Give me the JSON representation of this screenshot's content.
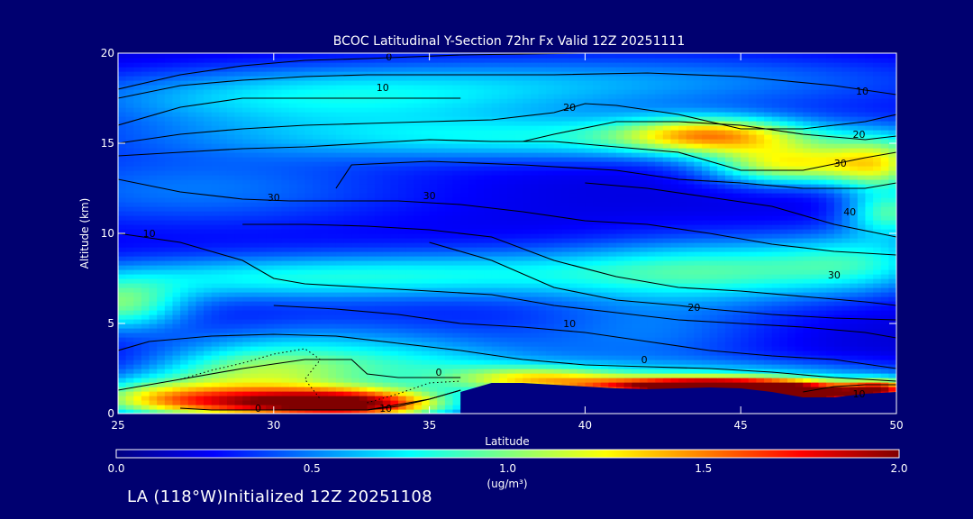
{
  "chart_data": {
    "type": "heatmap",
    "title": "BCOC Latitudinal Y-Section 72hr  Fx Valid 12Z 20251111",
    "xlabel": "Latitude",
    "ylabel": "Altitude (km)",
    "xlim": [
      25,
      50
    ],
    "ylim": [
      0,
      20
    ],
    "xticks": [
      {
        "value": 25,
        "label": "25"
      },
      {
        "value": 30,
        "label": "30"
      },
      {
        "value": 35,
        "label": "35"
      },
      {
        "value": 40,
        "label": "40"
      },
      {
        "value": 45,
        "label": "45"
      },
      {
        "value": 50,
        "label": "50"
      }
    ],
    "yticks": [
      {
        "value": 0,
        "label": "0"
      },
      {
        "value": 5,
        "label": "5"
      },
      {
        "value": 10,
        "label": "10"
      },
      {
        "value": 15,
        "label": "15"
      },
      {
        "value": 20,
        "label": "20"
      }
    ],
    "colorbar": {
      "range": [
        0.0,
        2.0
      ],
      "ticks": [
        {
          "value": 0.0,
          "label": "0.0"
        },
        {
          "value": 0.5,
          "label": "0.5"
        },
        {
          "value": 1.0,
          "label": "1.0"
        },
        {
          "value": 1.5,
          "label": "1.5"
        },
        {
          "value": 2.0,
          "label": "2.0"
        }
      ],
      "units": "(ug/m³)",
      "colormap": [
        "#000080",
        "#0000ff",
        "#0080ff",
        "#00ffff",
        "#80ff80",
        "#ffff00",
        "#ff8000",
        "#ff0000",
        "#800000"
      ]
    },
    "concentration_features": [
      {
        "lat": 46.5,
        "alt": 13.8,
        "value": 0.9,
        "sx": 1.8,
        "sy": 0.8
      },
      {
        "lat": 40.0,
        "alt": 15.3,
        "value": 0.55,
        "sx": 9.0,
        "sy": 0.9
      },
      {
        "lat": 44.0,
        "alt": 15.5,
        "value": 0.8,
        "sx": 2.0,
        "sy": 0.7
      },
      {
        "lat": 49.5,
        "alt": 13.8,
        "value": 0.8,
        "sx": 1.2,
        "sy": 1.0
      },
      {
        "lat": 49.8,
        "alt": 11.2,
        "value": 0.65,
        "sx": 1.0,
        "sy": 0.9
      },
      {
        "lat": 31.0,
        "alt": 17.5,
        "value": 0.5,
        "sx": 6.0,
        "sy": 1.2
      },
      {
        "lat": 42.0,
        "alt": 18.5,
        "value": 0.35,
        "sx": 8.0,
        "sy": 1.2
      },
      {
        "lat": 25.0,
        "alt": 6.0,
        "value": 0.7,
        "sx": 1.5,
        "sy": 1.0
      },
      {
        "lat": 29.0,
        "alt": 7.5,
        "value": 0.45,
        "sx": 5.0,
        "sy": 0.9
      },
      {
        "lat": 37.0,
        "alt": 7.8,
        "value": 0.4,
        "sx": 5.0,
        "sy": 1.0
      },
      {
        "lat": 44.5,
        "alt": 8.0,
        "value": 0.55,
        "sx": 3.5,
        "sy": 1.3
      },
      {
        "lat": 49.0,
        "alt": 8.5,
        "value": 0.4,
        "sx": 2.0,
        "sy": 1.2
      },
      {
        "lat": 27.5,
        "alt": 12.5,
        "value": 0.3,
        "sx": 5.0,
        "sy": 1.5
      },
      {
        "lat": 29.5,
        "alt": 2.2,
        "value": 0.75,
        "sx": 2.5,
        "sy": 1.1
      },
      {
        "lat": 30.0,
        "alt": 0.6,
        "value": 1.3,
        "sx": 3.0,
        "sy": 0.6
      },
      {
        "lat": 33.0,
        "alt": 0.5,
        "value": 1.0,
        "sx": 2.0,
        "sy": 0.6
      },
      {
        "lat": 26.0,
        "alt": 1.0,
        "value": 0.6,
        "sx": 2.0,
        "sy": 0.8
      },
      {
        "lat": 38.5,
        "alt": 1.9,
        "value": 0.7,
        "sx": 2.0,
        "sy": 0.5
      },
      {
        "lat": 35.0,
        "alt": 2.5,
        "value": 0.4,
        "sx": 3.0,
        "sy": 1.0
      },
      {
        "lat": 44.0,
        "alt": 1.5,
        "value": 2.0,
        "sx": 2.6,
        "sy": 0.35
      },
      {
        "lat": 47.0,
        "alt": 1.0,
        "value": 1.9,
        "sx": 1.3,
        "sy": 0.35
      },
      {
        "lat": 49.5,
        "alt": 1.3,
        "value": 1.3,
        "sx": 0.8,
        "sy": 0.4
      },
      {
        "lat": 45.0,
        "alt": 2.0,
        "value": 0.5,
        "sx": 5.0,
        "sy": 0.7
      },
      {
        "lat": 42.0,
        "alt": 4.5,
        "value": 0.3,
        "sx": 3.0,
        "sy": 1.5
      },
      {
        "lat": 32.0,
        "alt": 4.0,
        "value": 0.3,
        "sx": 4.0,
        "sy": 1.2
      }
    ],
    "terrain": [
      [
        36,
        1.2
      ],
      [
        37,
        1.7
      ],
      [
        38,
        1.7
      ],
      [
        39,
        1.6
      ],
      [
        40,
        1.5
      ],
      [
        41,
        1.4
      ],
      [
        42,
        1.35
      ],
      [
        43,
        1.4
      ],
      [
        44,
        1.45
      ],
      [
        45,
        1.4
      ],
      [
        46,
        1.2
      ],
      [
        47,
        0.9
      ],
      [
        48,
        0.9
      ],
      [
        49,
        1.1
      ],
      [
        50,
        1.2
      ]
    ],
    "contours": [
      {
        "level": "0",
        "points": [
          [
            25,
            18
          ],
          [
            27,
            18.8
          ],
          [
            29,
            19.3
          ],
          [
            31,
            19.6
          ],
          [
            33,
            19.7
          ],
          [
            36,
            19.9
          ],
          [
            40,
            20
          ]
        ],
        "label_at": [
          33.7,
          19.8
        ]
      },
      {
        "level": "10",
        "points": [
          [
            25,
            17.5
          ],
          [
            27,
            18.2
          ],
          [
            29,
            18.5
          ],
          [
            31,
            18.7
          ],
          [
            33,
            18.8
          ],
          [
            36,
            18.8
          ],
          [
            39,
            18.8
          ],
          [
            42,
            18.9
          ],
          [
            45,
            18.7
          ],
          [
            48,
            18.2
          ],
          [
            50,
            17.7
          ]
        ],
        "label_at": [
          33.5,
          18.1
        ]
      },
      {
        "level": "10",
        "points": [
          [
            25,
            16.0
          ],
          [
            27,
            17.0
          ],
          [
            29,
            17.5
          ],
          [
            31,
            17.5
          ],
          [
            33,
            17.5
          ],
          [
            34,
            17.5
          ],
          [
            36,
            17.5
          ]
        ],
        "label_at": [
          48.9,
          17.9
        ]
      },
      {
        "level": "20",
        "points": [
          [
            25,
            15.0
          ],
          [
            27,
            15.5
          ],
          [
            29,
            15.8
          ],
          [
            31,
            16.0
          ],
          [
            33,
            16.1
          ],
          [
            35,
            16.2
          ],
          [
            37,
            16.3
          ],
          [
            39,
            16.7
          ],
          [
            40,
            17.2
          ],
          [
            41,
            17.1
          ],
          [
            43,
            16.6
          ],
          [
            45,
            15.8
          ],
          [
            47,
            15.8
          ],
          [
            49,
            16.2
          ],
          [
            50,
            16.6
          ]
        ],
        "label_at": [
          39.5,
          17.0
        ]
      },
      {
        "level": "20",
        "points": [
          [
            38,
            15.1
          ],
          [
            39,
            15.5
          ],
          [
            41,
            16.2
          ],
          [
            43,
            16.2
          ],
          [
            45,
            16.0
          ],
          [
            47,
            15.5
          ],
          [
            49,
            15.2
          ],
          [
            50,
            15.4
          ]
        ],
        "label_at": [
          48.8,
          15.5
        ]
      },
      {
        "level": "30",
        "points": [
          [
            25,
            14.3
          ],
          [
            27,
            14.5
          ],
          [
            29,
            14.7
          ],
          [
            31,
            14.8
          ],
          [
            33,
            15.0
          ],
          [
            35,
            15.2
          ],
          [
            37,
            15.1
          ],
          [
            39,
            15.1
          ],
          [
            41,
            14.8
          ],
          [
            43,
            14.5
          ],
          [
            45,
            13.5
          ],
          [
            47,
            13.5
          ],
          [
            49,
            14.2
          ],
          [
            50,
            14.5
          ]
        ],
        "label_at": [
          48.2,
          13.9
        ]
      },
      {
        "level": "30",
        "points": [
          [
            32.0,
            12.5
          ],
          [
            32.5,
            13.8
          ],
          [
            35,
            14.0
          ],
          [
            38,
            13.8
          ],
          [
            41,
            13.5
          ],
          [
            43,
            13.0
          ],
          [
            45,
            12.8
          ],
          [
            47,
            12.5
          ],
          [
            49,
            12.5
          ],
          [
            50,
            12.8
          ]
        ],
        "label_at": [
          35.0,
          12.1
        ]
      },
      {
        "level": "30",
        "points": [
          [
            25,
            13.0
          ],
          [
            27,
            12.3
          ],
          [
            29,
            11.9
          ],
          [
            30.5,
            11.8
          ],
          [
            32,
            11.8
          ],
          [
            34,
            11.8
          ],
          [
            36,
            11.6
          ],
          [
            38,
            11.2
          ],
          [
            40,
            10.7
          ],
          [
            42,
            10.5
          ],
          [
            44,
            10.0
          ],
          [
            46,
            9.4
          ],
          [
            48,
            9.0
          ],
          [
            50,
            8.8
          ]
        ],
        "label_at": [
          30.0,
          12.0
        ]
      },
      {
        "level": "40",
        "points": [
          [
            40,
            12.8
          ],
          [
            42,
            12.5
          ],
          [
            44,
            12.0
          ],
          [
            46,
            11.5
          ],
          [
            48,
            10.5
          ],
          [
            50,
            9.8
          ]
        ],
        "label_at": [
          48.5,
          11.2
        ]
      },
      {
        "level": "10",
        "points": [
          [
            25,
            10.0
          ],
          [
            27,
            9.5
          ],
          [
            29,
            8.5
          ],
          [
            30,
            7.5
          ],
          [
            31,
            7.2
          ],
          [
            33,
            7.0
          ],
          [
            35,
            6.8
          ],
          [
            37,
            6.6
          ],
          [
            39,
            6.0
          ],
          [
            41,
            5.6
          ],
          [
            43,
            5.2
          ],
          [
            45,
            5.0
          ],
          [
            47,
            4.8
          ],
          [
            49,
            4.5
          ],
          [
            50,
            4.2
          ]
        ],
        "label_at": [
          26.0,
          10.0
        ]
      },
      {
        "level": "30",
        "points": [
          [
            29,
            10.5
          ],
          [
            31,
            10.5
          ],
          [
            33,
            10.4
          ],
          [
            35,
            10.2
          ],
          [
            37,
            9.8
          ],
          [
            39,
            8.5
          ],
          [
            41,
            7.6
          ],
          [
            43,
            7.0
          ],
          [
            45,
            6.8
          ],
          [
            47,
            6.5
          ],
          [
            49,
            6.2
          ],
          [
            50,
            6.0
          ]
        ],
        "label_at": [
          48.0,
          7.7
        ]
      },
      {
        "level": "20",
        "points": [
          [
            35,
            9.5
          ],
          [
            37,
            8.5
          ],
          [
            39,
            7.0
          ],
          [
            41,
            6.3
          ],
          [
            43,
            6.0
          ],
          [
            44,
            5.8
          ],
          [
            46,
            5.5
          ],
          [
            48,
            5.3
          ],
          [
            50,
            5.2
          ]
        ],
        "label_at": [
          43.5,
          5.9
        ]
      },
      {
        "level": "10",
        "points": [
          [
            30,
            6.0
          ],
          [
            32,
            5.8
          ],
          [
            34,
            5.5
          ],
          [
            36,
            5.0
          ],
          [
            38,
            4.8
          ],
          [
            40,
            4.5
          ],
          [
            42,
            4.0
          ],
          [
            44,
            3.5
          ],
          [
            46,
            3.2
          ],
          [
            48,
            3.0
          ],
          [
            50,
            2.5
          ]
        ],
        "label_at": [
          39.5,
          5.0
        ]
      },
      {
        "level": "0",
        "points": [
          [
            25,
            3.5
          ],
          [
            26,
            4.0
          ],
          [
            28,
            4.3
          ],
          [
            30,
            4.4
          ],
          [
            32,
            4.3
          ],
          [
            34,
            3.9
          ],
          [
            36,
            3.5
          ],
          [
            38,
            3.0
          ],
          [
            40,
            2.7
          ],
          [
            42,
            2.6
          ],
          [
            44,
            2.5
          ],
          [
            46,
            2.3
          ],
          [
            48,
            2.0
          ],
          [
            50,
            1.8
          ]
        ],
        "label_at": [
          41.9,
          3.0
        ]
      },
      {
        "level": "0",
        "points": [
          [
            25,
            1.3
          ],
          [
            27,
            1.9
          ],
          [
            29,
            2.5
          ],
          [
            31,
            3.0
          ],
          [
            32.5,
            3.0
          ],
          [
            33,
            2.2
          ],
          [
            34,
            2.0
          ],
          [
            35,
            2.0
          ],
          [
            36,
            2.0
          ]
        ],
        "label_at": [
          35.3,
          2.3
        ]
      },
      {
        "level": "0",
        "points": [
          [
            27,
            0.3
          ],
          [
            28,
            0.2
          ],
          [
            29,
            0.2
          ],
          [
            30,
            0.2
          ],
          [
            31,
            0.2
          ],
          [
            33,
            0.2
          ],
          [
            35,
            0.8
          ],
          [
            36,
            1.3
          ]
        ],
        "label_at": [
          29.5,
          0.3
        ]
      },
      {
        "level": "10",
        "points": [
          [
            33,
            0.2
          ],
          [
            34,
            0.4
          ],
          [
            35,
            0.8
          ],
          [
            36,
            1.3
          ]
        ],
        "label_at": [
          33.6,
          0.3
        ]
      },
      {
        "level": "10",
        "points": [
          [
            47,
            1.2
          ],
          [
            48,
            1.5
          ],
          [
            49,
            1.6
          ],
          [
            50,
            1.6
          ]
        ],
        "label_at": [
          48.8,
          1.1
        ]
      }
    ],
    "dotted_lines": [
      [
        [
          27,
          1.9
        ],
        [
          28,
          2.4
        ],
        [
          29,
          2.8
        ],
        [
          30,
          3.3
        ],
        [
          31,
          3.6
        ],
        [
          31.5,
          3.0
        ],
        [
          31.0,
          1.9
        ],
        [
          31.5,
          0.8
        ]
      ],
      [
        [
          33,
          0.6
        ],
        [
          34,
          1.1
        ],
        [
          35,
          1.7
        ],
        [
          36,
          1.8
        ]
      ]
    ]
  },
  "footer": {
    "text": "LA (118°W)Initialized 12Z 20251108"
  }
}
